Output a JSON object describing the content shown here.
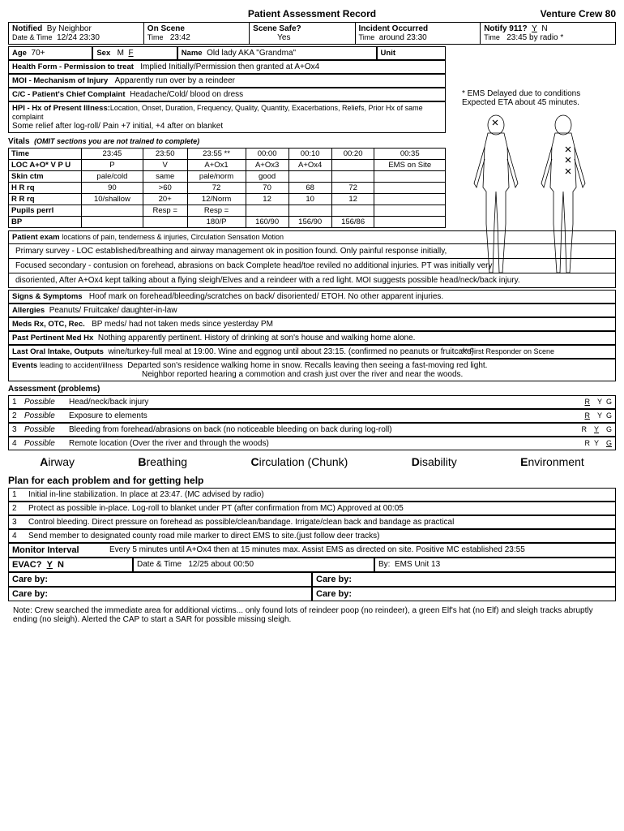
{
  "header": {
    "title": "Patient Assessment Record",
    "org": "Venture Crew 80"
  },
  "topbar": {
    "notified_label": "Notified",
    "notified_by": "By Neighbor",
    "notified_datetime_label": "Date & Time",
    "notified_datetime": "12/24 23:30",
    "onscene_label": "On Scene",
    "onscene_time_label": "Time",
    "onscene_time": "23:42",
    "scenesafe_label": "Scene Safe?",
    "scenesafe": "Yes",
    "incident_label": "Incident Occurred",
    "incident_time_label": "Time",
    "incident_time": "around 23:30",
    "notify911_label": "Notify 911?",
    "notify911_yn": "Y  N",
    "notify911_time_label": "Time",
    "notify911_time": "23:45 by radio *"
  },
  "ems_note": {
    "line1": "* EMS Delayed due to conditions",
    "line2": "Expected ETA about 45 minutes."
  },
  "patient": {
    "age_label": "Age",
    "age": "70+",
    "sex_label": "Sex",
    "sex": "M  F",
    "name_label": "Name",
    "name": "Old lady AKA \"Grandma\"",
    "unit_label": "Unit",
    "healthform_label": "Health Form - Permission to treat",
    "healthform": "Implied Initially/Permission then granted at A+Ox4",
    "moi_label": "MOI - Mechanism of Injury",
    "moi": "Apparently run over by a reindeer",
    "cc_label": "C/C - Patient's Chief Complaint",
    "cc": "Headache/Cold/ blood on dress",
    "hpi_label": "HPI - Hx of Present Illness:",
    "hpi_sub": "Location, Onset, Duration, Frequency, Quality, Quantity, Exacerbations, Reliefs, Prior Hx of same complaint",
    "hpi": "Some relief after log-roll/ Pain +7 initial, +4 after on blanket"
  },
  "vitals": {
    "header": "Vitals",
    "header_note": "(OMIT sections you are not trained to complete)",
    "time_label": "Time",
    "times": [
      "23:45",
      "23:50",
      "23:55 **",
      "00:00",
      "00:10",
      "00:20",
      "00:35"
    ],
    "rows": [
      {
        "label": "LOC A+O* V P U",
        "vals": [
          "P",
          "V",
          "A+Ox1",
          "A+Ox3",
          "A+Ox4",
          "",
          "EMS on Site"
        ]
      },
      {
        "label": "Skin ctm",
        "vals": [
          "pale/cold",
          "same",
          "pale/norm",
          "good",
          "",
          "",
          ""
        ]
      },
      {
        "label": "H R rq",
        "vals": [
          "90",
          ">60",
          "72",
          "70",
          "68",
          "72",
          ""
        ]
      },
      {
        "label": "R R rq",
        "vals": [
          "10/shallow",
          "20+",
          "12/Norm",
          "12",
          "10",
          "12",
          ""
        ]
      },
      {
        "label": "Pupils perrl",
        "vals": [
          "",
          "Resp =",
          "Resp =",
          "",
          "",
          "",
          ""
        ]
      },
      {
        "label": "BP",
        "vals": [
          "",
          "",
          "180/P",
          "160/90",
          "156/90",
          "156/86",
          ""
        ]
      }
    ],
    "footnote": "** First Responder on Scene"
  },
  "exam": {
    "header": "Patient exam",
    "header_sub": "locations of pain, tenderness & injuries, Circulation Sensation Motion",
    "line1": "Primary survey - LOC established/breathing and airway management ok in position found. Only painful response initially,",
    "line2": "Focused secondary - contusion on forehead, abrasions on back Complete head/toe reviled no additional injuries. PT was initially very",
    "line3": "disoriented, After A+Ox4 kept talking about a flying sleigh/Elves and a reindeer with a red light. MOI suggests possible head/neck/back injury."
  },
  "sample": {
    "signs_label": "Signs & Symptoms",
    "signs": "Hoof mark on forehead/bleeding/scratches on back/ disoriented/ ETOH. No other apparent injuries.",
    "allergies_label": "Allergies",
    "allergies": "Peanuts/ Fruitcake/ daughter-in-law",
    "meds_label": "Meds Rx, OTC, Rec.",
    "meds": "BP meds/ had not taken meds since yesterday PM",
    "pasthx_label": "Past Pertinent Med Hx",
    "pasthx": "Nothing apparently pertinent. History of drinking at son's house and walking home alone.",
    "intake_label": "Last Oral Intake, Outputs",
    "intake": "wine/turkey-full meal at 19:00. Wine and eggnog until about 23:15. (confirmed no peanuts or fruitcake)",
    "events_label": "Events",
    "events_sub": "leading to accident/illness",
    "events1": "Departed son's residence walking home in snow. Recalls leaving then seeing a fast-moving red light.",
    "events2": "Neighbor reported hearing a commotion and crash just over the river and near the woods."
  },
  "assessment": {
    "header": "Assessment (problems)",
    "rows": [
      {
        "n": "1",
        "poss": "Possible",
        "text": "Head/neck/back injury",
        "ryg": "R"
      },
      {
        "n": "2",
        "poss": "Possible",
        "text": "Exposure to elements",
        "ryg": "R"
      },
      {
        "n": "3",
        "poss": "Possible",
        "text": "Bleeding from forehead/abrasions on back (no noticeable bleeding on back during log-roll)",
        "ryg": "Y"
      },
      {
        "n": "4",
        "poss": "Possible",
        "text": "Remote location (Over the river and through the woods)",
        "ryg": "G"
      }
    ]
  },
  "abcde": {
    "a": "Airway",
    "b": "Breathing",
    "c": "Circulation (Chunk)",
    "d": "Disability",
    "e": "Environment"
  },
  "plan": {
    "header": "Plan for each problem and for getting help",
    "rows": [
      {
        "n": "1",
        "text": "Initial in-line stabilization. In place at 23:47. (MC advised by radio)"
      },
      {
        "n": "2",
        "text": "Protect as possible in-place. Log-roll to blanket under PT (after confirmation from MC) Approved at 00:05"
      },
      {
        "n": "3",
        "text": "Control bleeding. Direct pressure on forehead as possible/clean/bandage. Irrigate/clean back and bandage as practical"
      },
      {
        "n": "4",
        "text": "Send member to designated county road mile marker to direct EMS to site.(just follow deer tracks)"
      }
    ],
    "monitor_label": "Monitor Interval",
    "monitor": "Every 5 minutes until A+Ox4 then at 15 minutes max. Assist EMS as directed on site. Positive MC established 23:55",
    "evac_label": "EVAC?",
    "evac_yn": "Y  N",
    "evac_dt_label": "Date & Time",
    "evac_dt": "12/25 about 00:50",
    "evac_by_label": "By:",
    "evac_by": "EMS Unit 13",
    "careby": "Care by:"
  },
  "footnote": "Note: Crew searched the immediate area for additional victims... only found lots of reindeer poop (no reindeer), a green Elf's hat (no Elf) and sleigh tracks abruptly ending (no sleigh). Alerted the CAP to start a SAR for possible missing sleigh."
}
